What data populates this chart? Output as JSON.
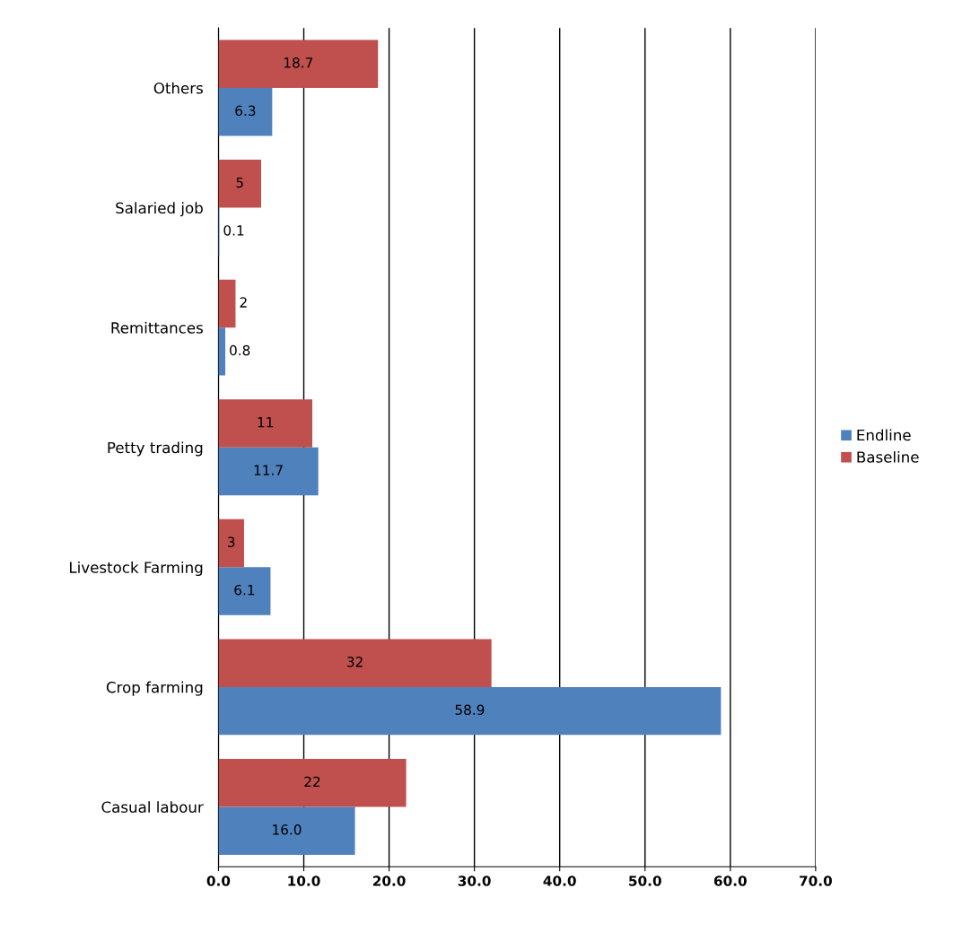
{
  "chart_data": {
    "type": "bar",
    "orientation": "horizontal",
    "categories": [
      "Others",
      "Salaried job",
      "Remittances",
      "Petty trading",
      "Livestock Farming",
      "Crop farming",
      "Casual labour"
    ],
    "series": [
      {
        "name": "Endline",
        "color": "#4f81bd",
        "values": [
          6.3,
          0.1,
          0.8,
          11.7,
          6.1,
          58.9,
          16.0
        ],
        "value_labels": [
          "6.3",
          "0.1",
          "0.8",
          "11.7",
          "6.1",
          "58.9",
          "16.0"
        ]
      },
      {
        "name": "Baseline",
        "color": "#c0504d",
        "values": [
          18.7,
          5,
          2,
          11,
          3,
          32,
          22
        ],
        "value_labels": [
          "18.7",
          "5",
          "2",
          "11",
          "3",
          "32",
          "22"
        ]
      }
    ],
    "xlim": [
      0,
      70
    ],
    "xticks": [
      {
        "value": 0,
        "label": "0.0"
      },
      {
        "value": 10,
        "label": "10.0"
      },
      {
        "value": 20,
        "label": "20.0"
      },
      {
        "value": 30,
        "label": "30.0"
      },
      {
        "value": 40,
        "label": "40.0"
      },
      {
        "value": 50,
        "label": "50.0"
      },
      {
        "value": 60,
        "label": "60.0"
      },
      {
        "value": 70,
        "label": "70.0"
      }
    ],
    "grid": "x",
    "legend": "right"
  }
}
